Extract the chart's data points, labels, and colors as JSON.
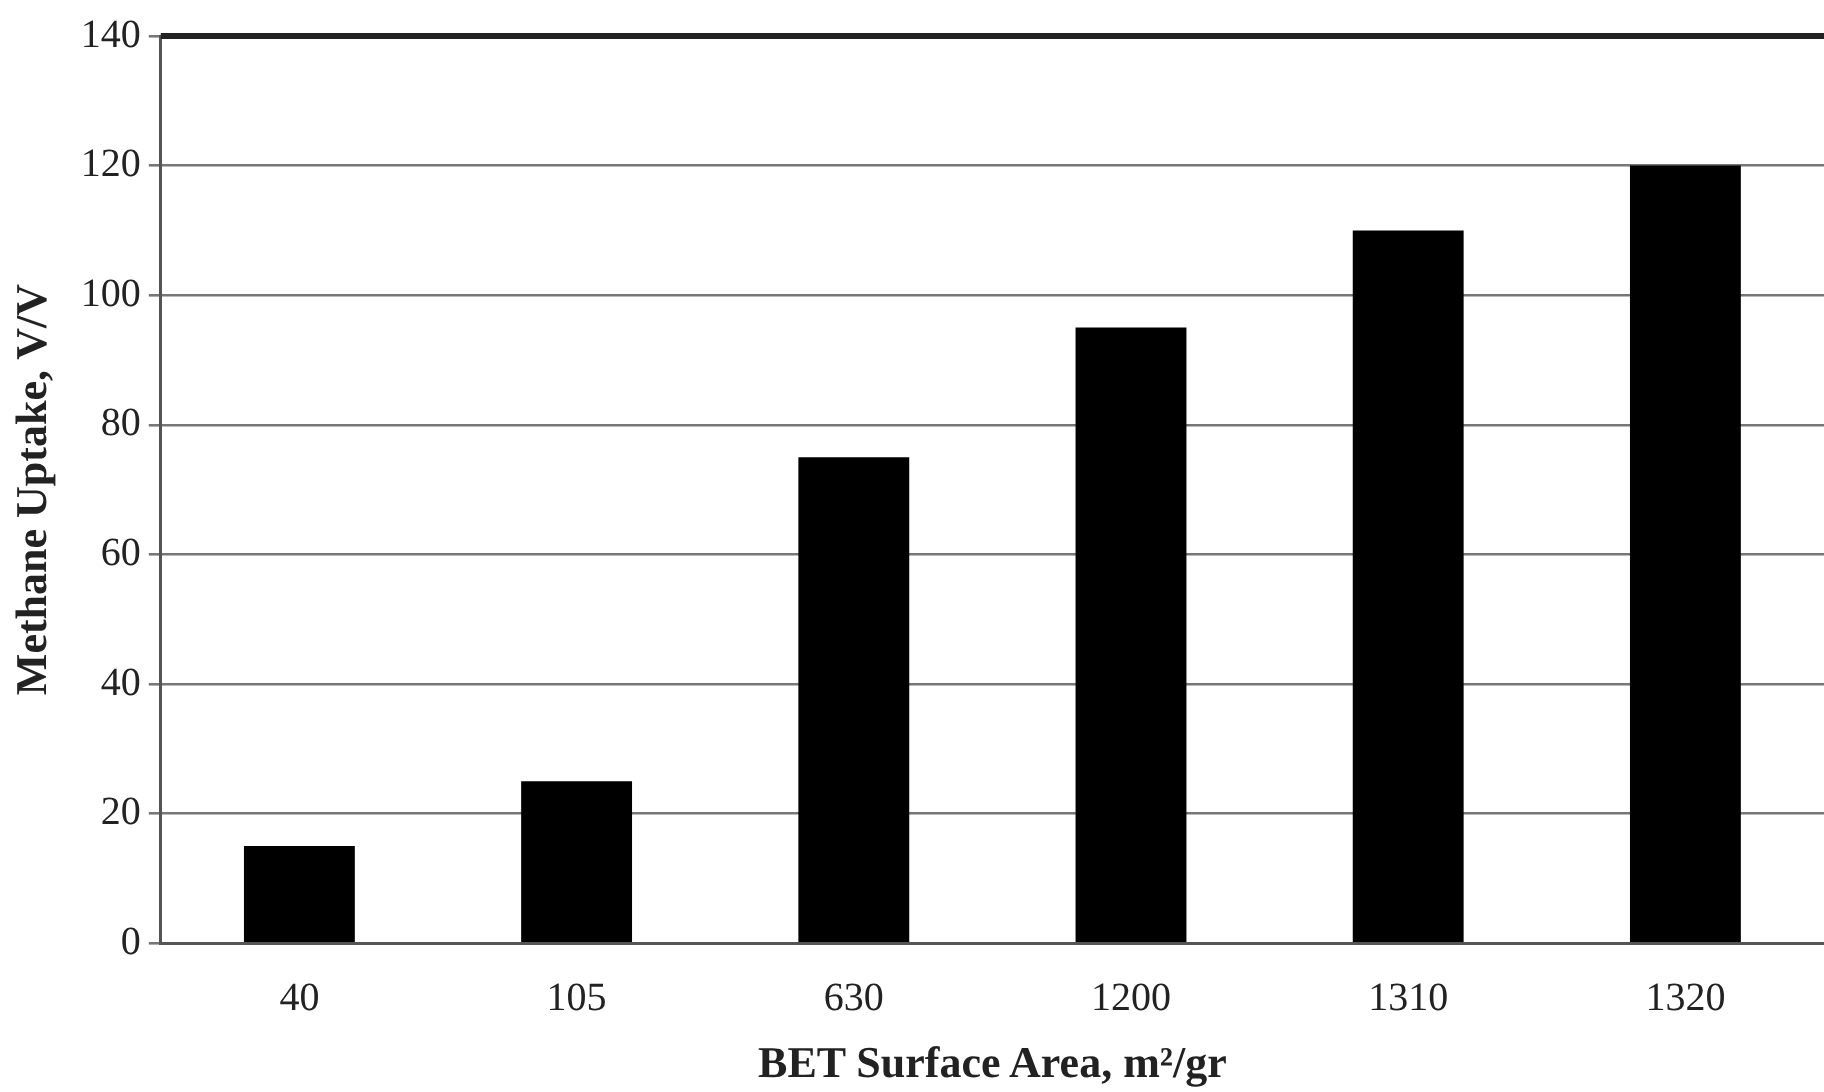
{
  "chart_data": {
    "type": "bar",
    "xlabel": "BET Surface Area, m²/gr",
    "ylabel": "Methane Uptake, V/V",
    "categories": [
      "40",
      "105",
      "630",
      "1200",
      "1310",
      "1320"
    ],
    "values": [
      15,
      25,
      75,
      95,
      110,
      120
    ],
    "color": "#000000",
    "ylim": [
      0,
      140
    ],
    "yticks": [
      0,
      20,
      40,
      60,
      80,
      100,
      120,
      140
    ],
    "grid": "y"
  }
}
